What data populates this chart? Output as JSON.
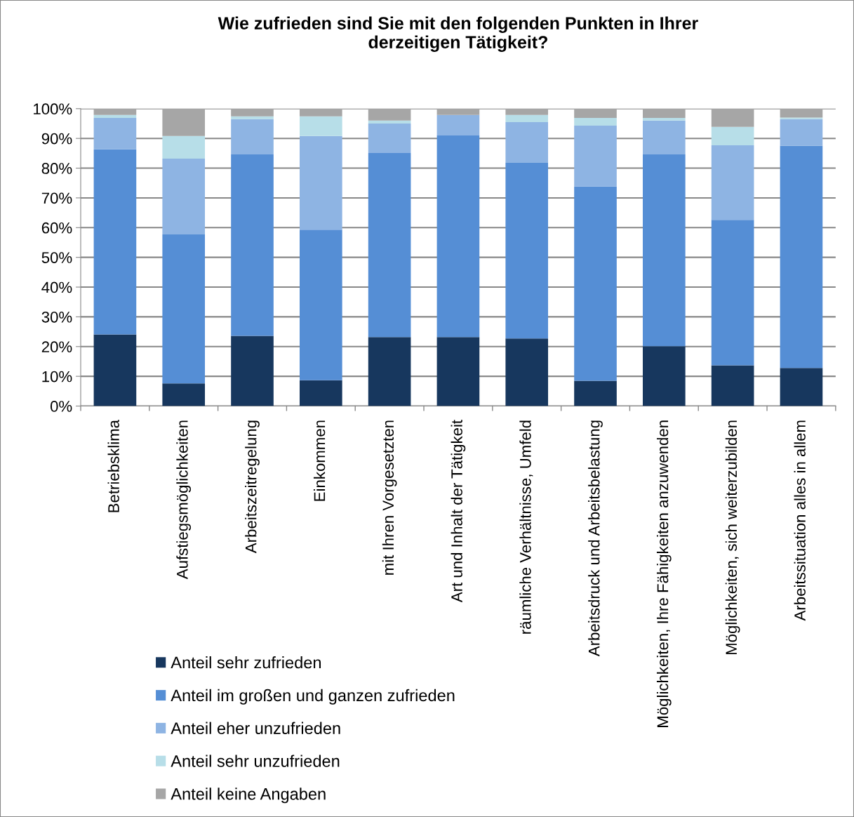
{
  "chart_data": {
    "type": "bar",
    "stacked": true,
    "title": "Wie zufrieden sind Sie mit den folgenden Punkten in Ihrer\nderzeitigen Tätigkeit?",
    "categories": [
      "Betriebsklima",
      "Aufstiegsmöglichkeiten",
      "Arbeitszeitregelung",
      "Einkommen",
      "mit Ihren Vorgesetzten",
      "Art und Inhalt der Tätigkeit",
      "räumliche Verhältnisse, Umfeld",
      "Arbeitsdruck und Arbeitsbelastung",
      "Möglichkeiten, Ihre Fähigkeiten anzuwenden",
      "Möglichkeiten, sich weiterzubilden",
      "Arbeitssituation alles in allem"
    ],
    "series": [
      {
        "name": "Anteil sehr zufrieden",
        "color": "#17375e",
        "values": [
          24.1,
          7.6,
          23.6,
          8.7,
          23.2,
          23.2,
          22.7,
          8.5,
          20.1,
          13.7,
          12.8
        ]
      },
      {
        "name": "Anteil im großen und ganzen zufrieden",
        "color": "#558ed5",
        "values": [
          62.2,
          50.1,
          61.0,
          50.6,
          61.9,
          67.8,
          59.1,
          65.3,
          64.5,
          48.9,
          74.7
        ]
      },
      {
        "name": "Anteil eher unzufrieden",
        "color": "#8eb4e3",
        "values": [
          10.6,
          25.5,
          11.9,
          31.5,
          9.9,
          6.9,
          13.7,
          20.5,
          11.4,
          25.1,
          9.0
        ]
      },
      {
        "name": "Anteil sehr unzufrieden",
        "color": "#b7dee8",
        "values": [
          1.0,
          7.6,
          0.9,
          6.6,
          1.0,
          0.0,
          2.4,
          2.6,
          0.9,
          6.2,
          0.5
        ]
      },
      {
        "name": "Anteil keine Angaben",
        "color": "#a6a6a6",
        "values": [
          2.1,
          9.2,
          2.6,
          2.6,
          4.0,
          2.1,
          2.1,
          3.1,
          3.1,
          6.1,
          3.0
        ]
      }
    ],
    "ylim": [
      0,
      100
    ],
    "yticks": [
      {
        "value": 0,
        "label": "0%"
      },
      {
        "value": 10,
        "label": "10%"
      },
      {
        "value": 20,
        "label": "20%"
      },
      {
        "value": 30,
        "label": "30%"
      },
      {
        "value": 40,
        "label": "40%"
      },
      {
        "value": 50,
        "label": "50%"
      },
      {
        "value": 60,
        "label": "60%"
      },
      {
        "value": 70,
        "label": "70%"
      },
      {
        "value": 80,
        "label": "80%"
      },
      {
        "value": 90,
        "label": "90%"
      },
      {
        "value": 100,
        "label": "100%"
      }
    ],
    "grid": "y",
    "legend": "bottom left"
  }
}
